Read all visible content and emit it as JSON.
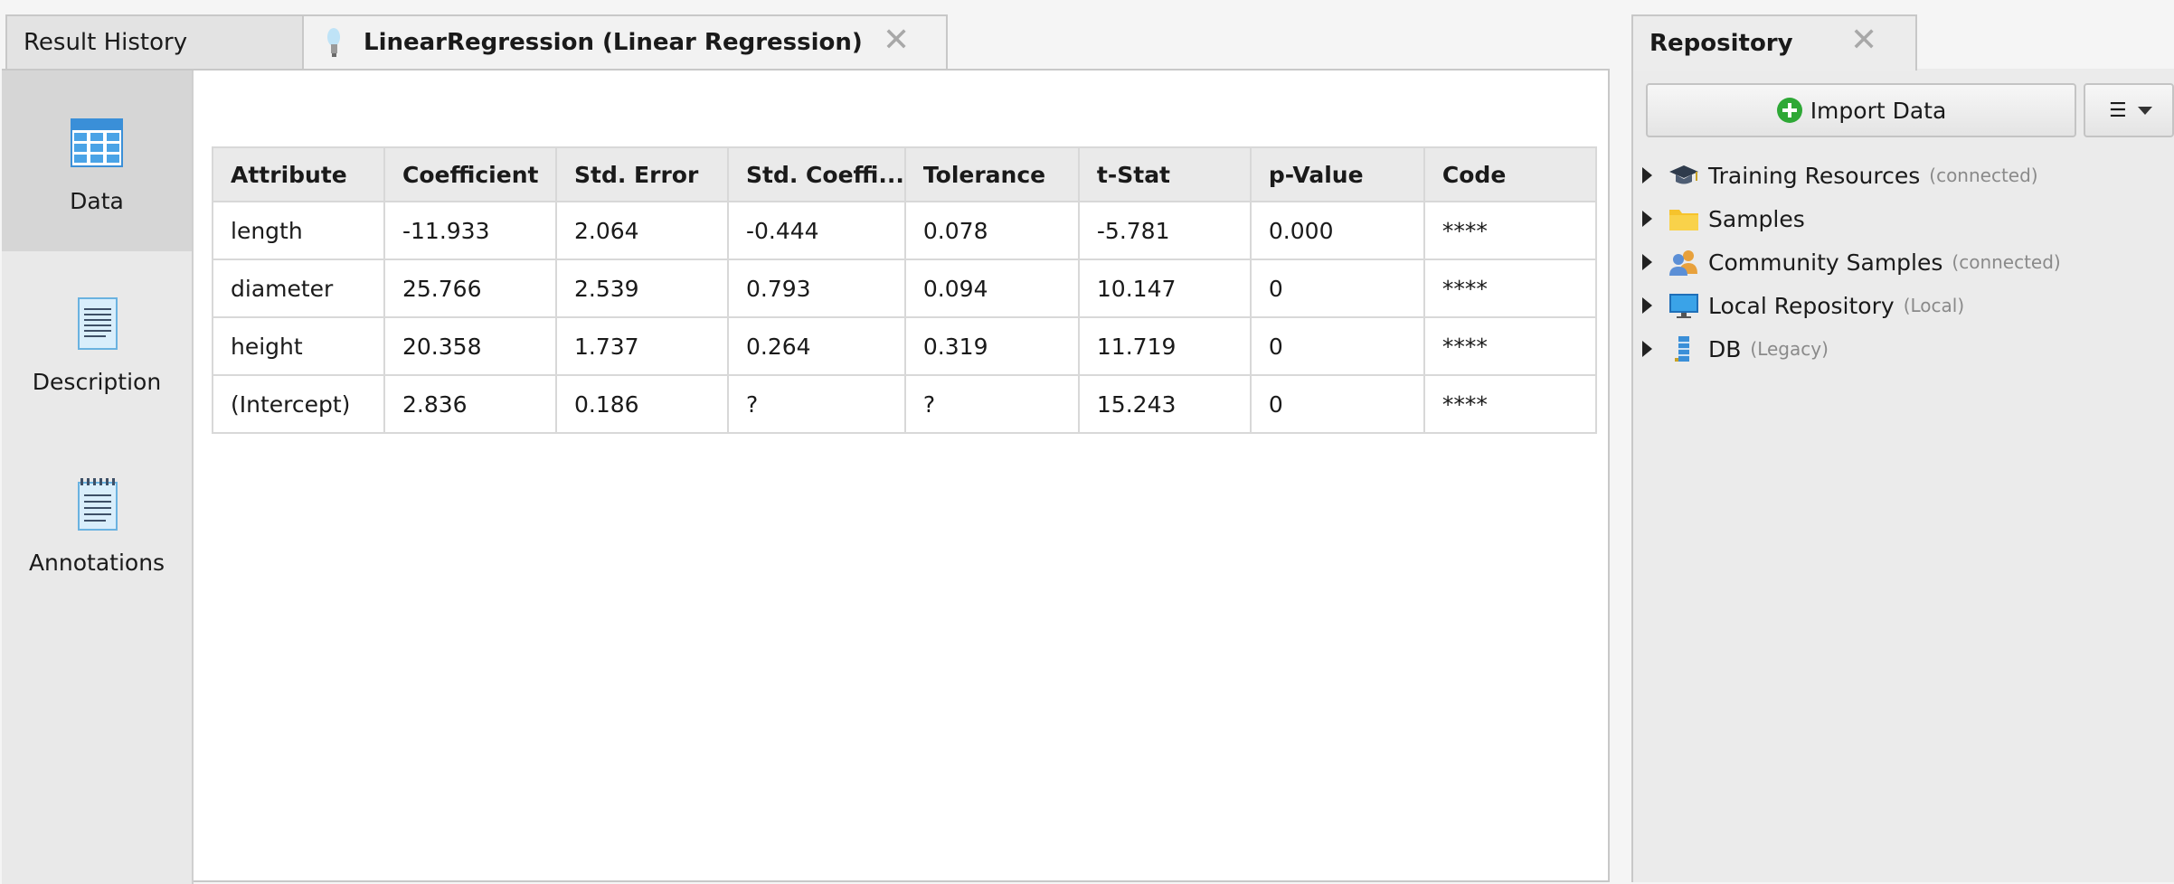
{
  "tabs": {
    "result_history": "Result History",
    "active": "LinearRegression (Linear Regression)",
    "close_symbol": "✕"
  },
  "side_nav": [
    {
      "label": "Data",
      "icon": "table-icon",
      "selected": true
    },
    {
      "label": "Description",
      "icon": "document-icon",
      "selected": false
    },
    {
      "label": "Annotations",
      "icon": "notepad-icon",
      "selected": false
    }
  ],
  "table": {
    "columns": [
      "Attribute",
      "Coefficient",
      "Std. Error",
      "Std. Coeffi...",
      "Tolerance",
      "t-Stat",
      "p-Value",
      "Code"
    ],
    "rows": [
      [
        "length",
        "-11.933",
        "2.064",
        "-0.444",
        "0.078",
        "-5.781",
        "0.000",
        "****"
      ],
      [
        "diameter",
        "25.766",
        "2.539",
        "0.793",
        "0.094",
        "10.147",
        "0",
        "****"
      ],
      [
        "height",
        "20.358",
        "1.737",
        "0.264",
        "0.319",
        "11.719",
        "0",
        "****"
      ],
      [
        "(Intercept)",
        "2.836",
        "0.186",
        "?",
        "?",
        "15.243",
        "0",
        "****"
      ]
    ]
  },
  "repository": {
    "title": "Repository",
    "close_symbol": "✕",
    "import_button": "Import Data",
    "menu_symbol": "☰",
    "tree": [
      {
        "label": "Training Resources",
        "sub": "(connected)",
        "icon": "graduation-cap-icon"
      },
      {
        "label": "Samples",
        "sub": "",
        "icon": "folder-icon"
      },
      {
        "label": "Community Samples",
        "sub": "(connected)",
        "icon": "community-icon"
      },
      {
        "label": "Local Repository",
        "sub": "(Local)",
        "icon": "monitor-icon"
      },
      {
        "label": "DB",
        "sub": "(Legacy)",
        "icon": "database-icon"
      }
    ]
  },
  "colors": {
    "accent_blue": "#3a8fd8",
    "import_green": "#2ea836",
    "folder_yellow": "#f6c32c"
  }
}
